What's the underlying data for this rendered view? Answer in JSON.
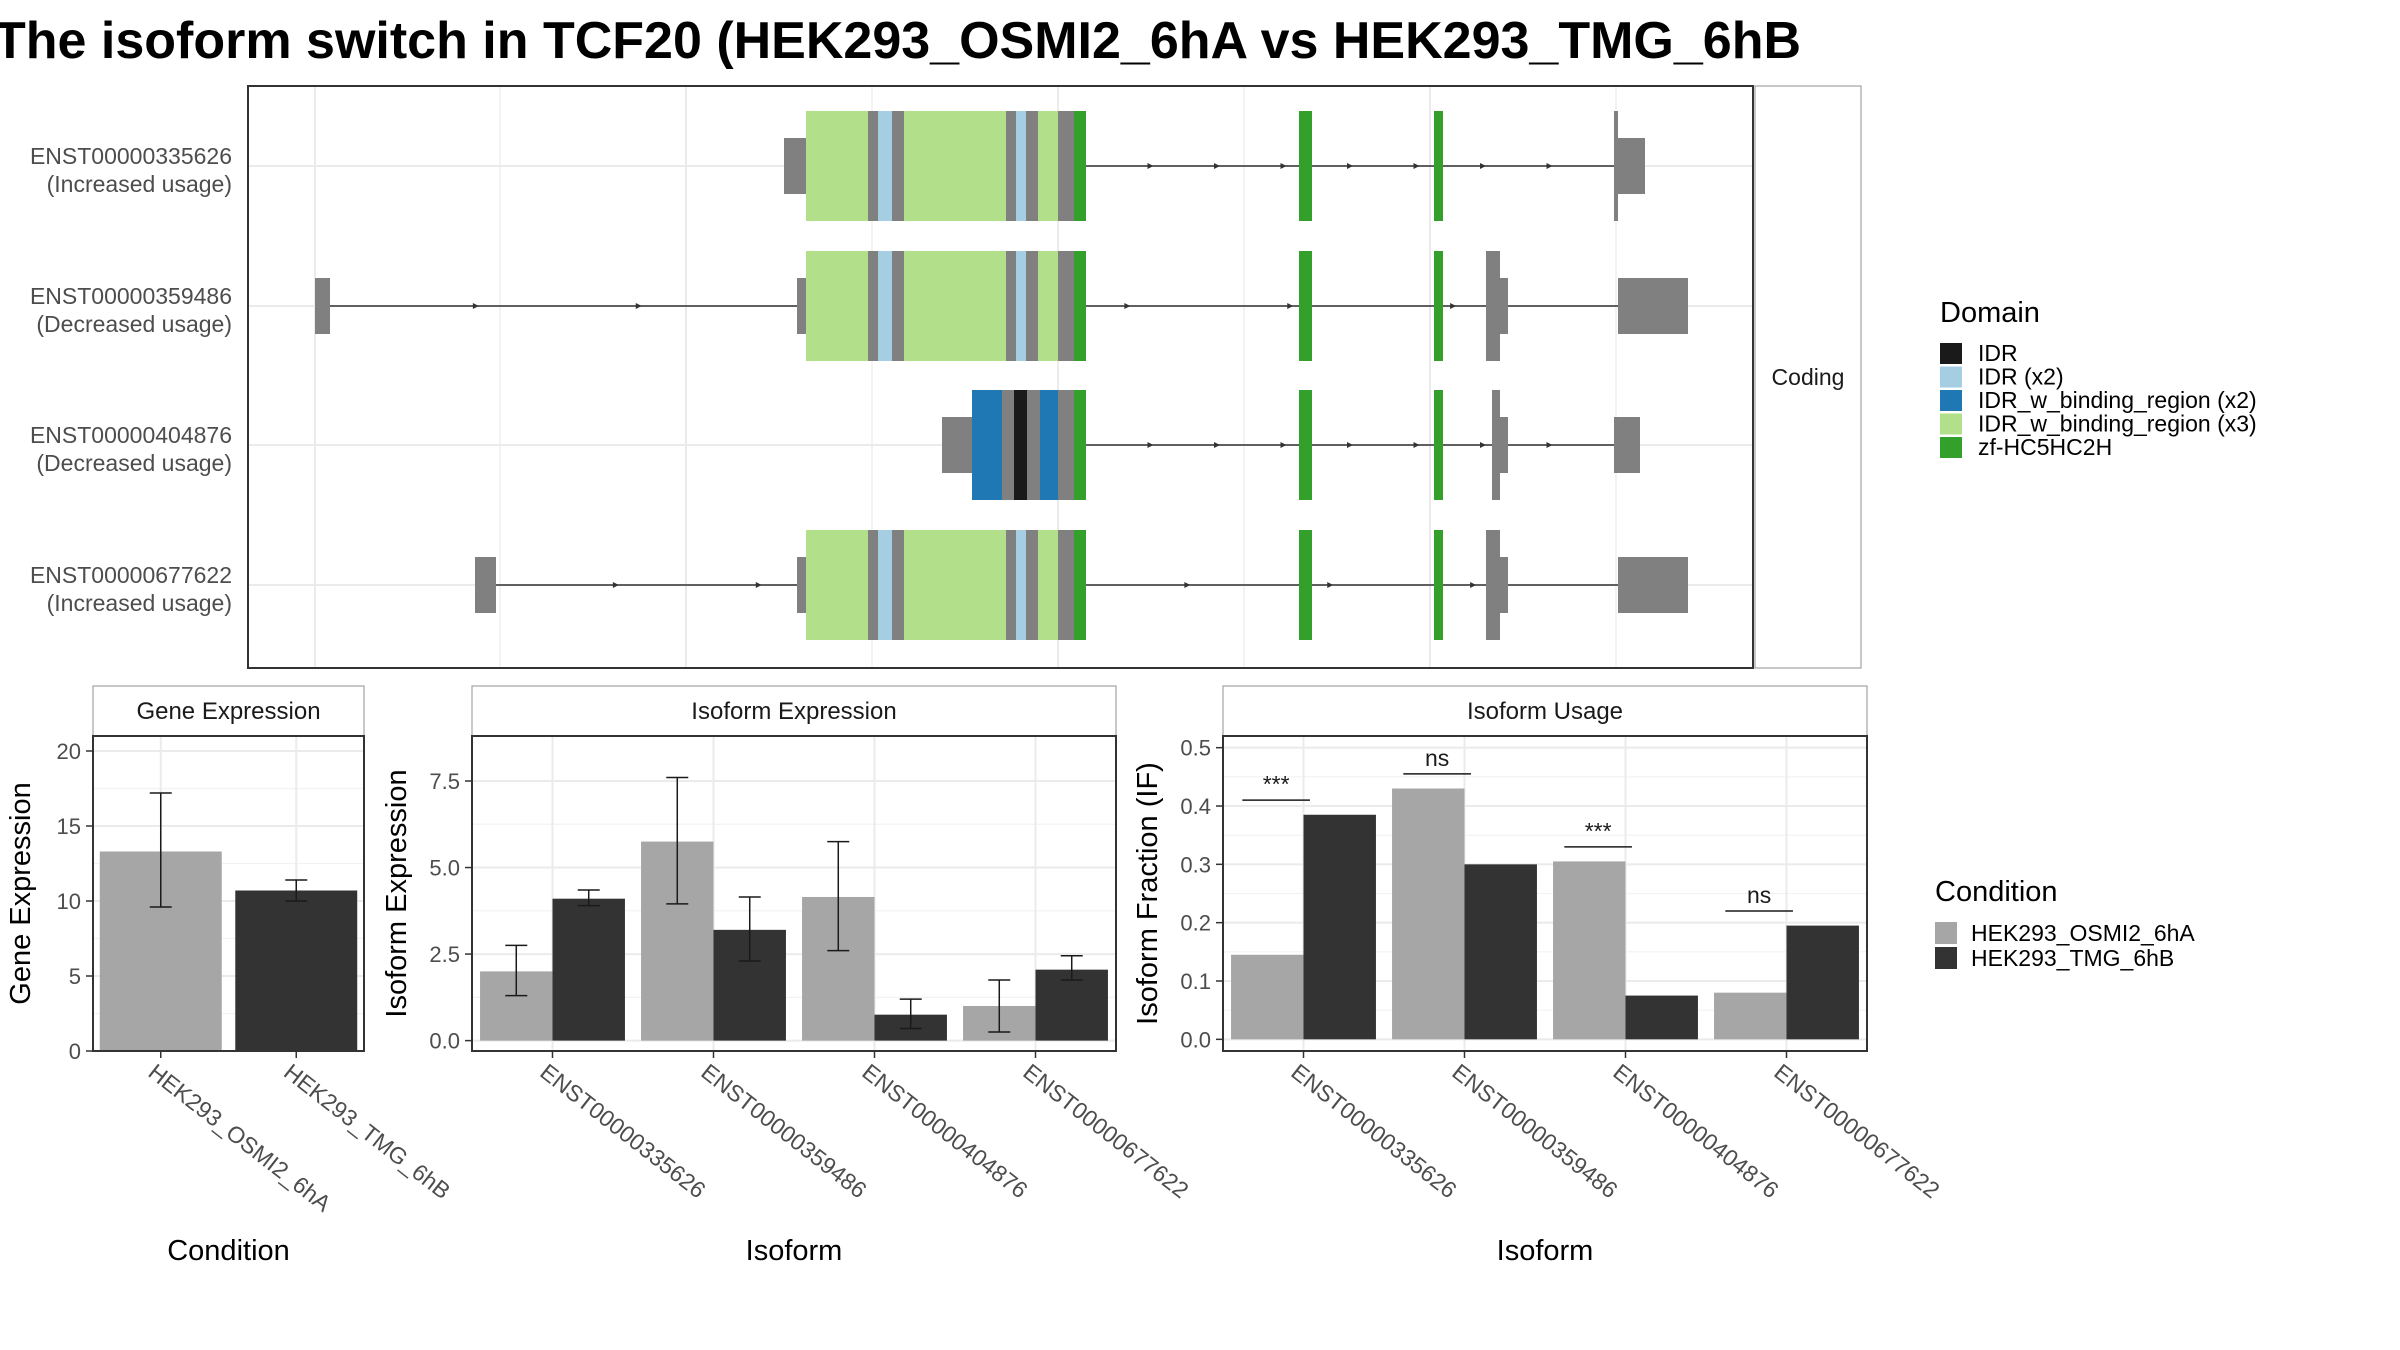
{
  "title": "The isoform switch in TCF20 (HEK293_OSMI2_6hA vs HEK293_TMG_6hB",
  "colors": {
    "cond_a": "#a6a6a6",
    "cond_b": "#333333",
    "exon": "#808080",
    "strip_bg": "#ffffff",
    "domains": {
      "IDR": "#1a1a1a",
      "IDR (x2)": "#a6cee3",
      "IDR_w_binding_region (x2)": "#1f78b4",
      "IDR_w_binding_region (x3)": "#b2df8a",
      "zf-HC5HC2H": "#33a02c"
    }
  },
  "chart_data": [
    {
      "type": "gene-structure",
      "facet_label": "Coding",
      "transcripts": [
        {
          "id": "ENST00000335626",
          "status": "(Increased usage)"
        },
        {
          "id": "ENST00000359486",
          "status": "(Decreased usage)"
        },
        {
          "id": "ENST00000404876",
          "status": "(Decreased usage)"
        },
        {
          "id": "ENST00000677622",
          "status": "(Increased usage)"
        }
      ],
      "legend": {
        "title": "Domain",
        "items": [
          "IDR",
          "IDR (x2)",
          "IDR_w_binding_region (x2)",
          "IDR_w_binding_region (x3)",
          "zf-HC5HC2H"
        ]
      }
    },
    {
      "type": "bar",
      "title": "Gene Expression",
      "xlabel": "Condition",
      "ylabel": "Gene Expression",
      "ylim": [
        0,
        21
      ],
      "yticks": [
        0,
        5,
        10,
        15,
        20
      ],
      "categories": [
        "HEK293_OSMI2_6hA",
        "HEK293_TMG_6hB"
      ],
      "series": [
        {
          "values": [
            13.3,
            10.7
          ],
          "err_low": [
            9.6,
            10.0
          ],
          "err_high": [
            17.2,
            11.4
          ]
        }
      ]
    },
    {
      "type": "bar",
      "title": "Isoform Expression",
      "xlabel": "Isoform",
      "ylabel": "Isoform Expression",
      "ylim": [
        -0.3,
        8.8
      ],
      "yticks": [
        0.0,
        2.5,
        5.0,
        7.5
      ],
      "categories": [
        "ENST00000335626",
        "ENST00000359486",
        "ENST00000404876",
        "ENST00000677622"
      ],
      "series": [
        {
          "name": "HEK293_OSMI2_6hA",
          "values": [
            2.0,
            5.75,
            4.15,
            1.0
          ],
          "err_low": [
            1.3,
            3.95,
            2.6,
            0.25
          ],
          "err_high": [
            2.75,
            7.6,
            5.75,
            1.75
          ]
        },
        {
          "name": "HEK293_TMG_6hB",
          "values": [
            4.1,
            3.2,
            0.75,
            2.05
          ],
          "err_low": [
            3.9,
            2.3,
            0.35,
            1.75
          ],
          "err_high": [
            4.35,
            4.15,
            1.2,
            2.45
          ]
        }
      ]
    },
    {
      "type": "bar",
      "title": "Isoform Usage",
      "xlabel": "Isoform",
      "ylabel": "Isoform Fraction (IF)",
      "ylim": [
        -0.02,
        0.52
      ],
      "yticks": [
        0.0,
        0.1,
        0.2,
        0.3,
        0.4,
        0.5
      ],
      "categories": [
        "ENST00000335626",
        "ENST00000359486",
        "ENST00000404876",
        "ENST00000677622"
      ],
      "series": [
        {
          "name": "HEK293_OSMI2_6hA",
          "values": [
            0.145,
            0.43,
            0.305,
            0.08
          ]
        },
        {
          "name": "HEK293_TMG_6hB",
          "values": [
            0.385,
            0.3,
            0.075,
            0.195
          ]
        }
      ],
      "significance": [
        "***",
        "ns",
        "***",
        "ns"
      ],
      "significance_y": [
        0.41,
        0.455,
        0.33,
        0.22
      ]
    }
  ],
  "condition_legend": {
    "title": "Condition",
    "items": [
      "HEK293_OSMI2_6hA",
      "HEK293_TMG_6hB"
    ]
  }
}
